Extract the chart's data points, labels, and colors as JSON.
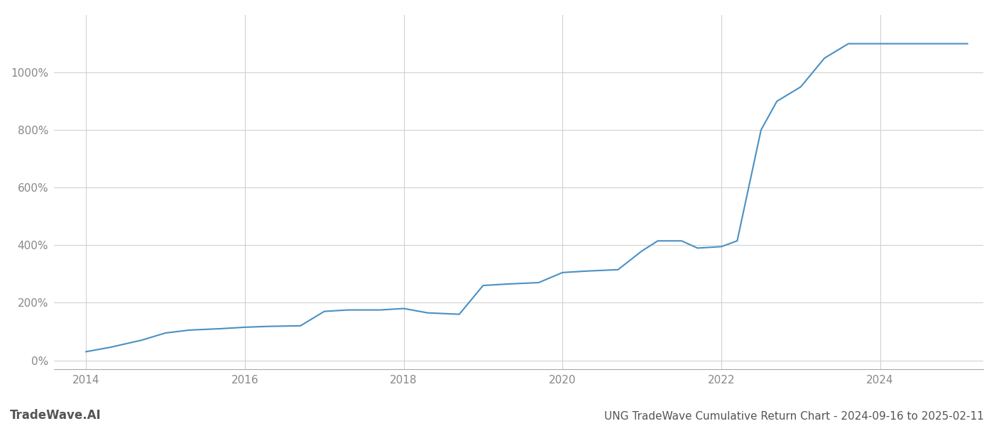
{
  "title": "UNG TradeWave Cumulative Return Chart - 2024-09-16 to 2025-02-11",
  "watermark": "TradeWave.AI",
  "line_color": "#4a90c4",
  "background_color": "#ffffff",
  "grid_color": "#cccccc",
  "x_years": [
    2014.0,
    2014.3,
    2014.7,
    2015.0,
    2015.3,
    2015.7,
    2016.0,
    2016.3,
    2016.7,
    2017.0,
    2017.3,
    2017.7,
    2018.0,
    2018.3,
    2018.7,
    2019.0,
    2019.3,
    2019.7,
    2020.0,
    2020.3,
    2020.7,
    2021.0,
    2021.2,
    2021.5,
    2021.7,
    2022.0,
    2022.2,
    2022.5,
    2022.7,
    2023.0,
    2023.3,
    2023.6,
    2024.0,
    2024.3,
    2024.7,
    2025.1
  ],
  "y_values": [
    30,
    45,
    70,
    95,
    105,
    110,
    115,
    118,
    120,
    170,
    175,
    175,
    180,
    165,
    160,
    260,
    265,
    270,
    305,
    310,
    315,
    380,
    415,
    415,
    390,
    395,
    415,
    800,
    900,
    950,
    1050,
    1100,
    1100,
    1100,
    1100,
    1100
  ],
  "xlim": [
    2013.6,
    2025.3
  ],
  "ylim": [
    -30,
    1200
  ],
  "yticks": [
    0,
    200,
    400,
    600,
    800,
    1000
  ],
  "ytick_labels": [
    "0%",
    "200%",
    "400%",
    "600%",
    "800%",
    "1000%"
  ],
  "xticks": [
    2014,
    2016,
    2018,
    2020,
    2022,
    2024
  ],
  "xtick_labels": [
    "2014",
    "2016",
    "2018",
    "2020",
    "2022",
    "2024"
  ],
  "line_width": 1.5,
  "title_fontsize": 11,
  "tick_fontsize": 11,
  "watermark_fontsize": 12
}
